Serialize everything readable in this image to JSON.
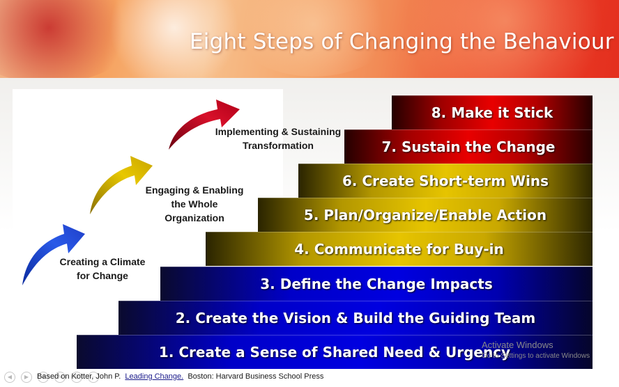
{
  "slide": {
    "title": "Eight Steps of Changing the Behaviour",
    "stages": [
      {
        "line1": "Creating a Climate",
        "line2": "for Change",
        "line3": ""
      },
      {
        "line1": "Engaging & Enabling",
        "line2": "the Whole",
        "line3": "Organization"
      },
      {
        "line1": "Implementing & Sustaining",
        "line2": "Transformation",
        "line3": ""
      }
    ],
    "steps": [
      {
        "label": "1. Create a Sense of Shared Need & Urgency",
        "color": "blue"
      },
      {
        "label": "2. Create the Vision & Build the Guiding Team",
        "color": "blue"
      },
      {
        "label": "3. Define the Change Impacts",
        "color": "blue"
      },
      {
        "label": "4. Communicate for Buy-in",
        "color": "gold"
      },
      {
        "label": "5. Plan/Organize/Enable Action",
        "color": "gold"
      },
      {
        "label": "6. Create Short-term Wins",
        "color": "gold"
      },
      {
        "label": "7. Sustain the Change",
        "color": "red"
      },
      {
        "label": "8. Make it Stick",
        "color": "red"
      }
    ],
    "arrow_colors": [
      "#1f4fd6",
      "#d4b000",
      "#c8102e"
    ],
    "citation": {
      "prefix": "Based on Kotter, John P.",
      "link": "Leading Change.",
      "suffix": "Boston:  Harvard Business School Press"
    }
  },
  "watermark": {
    "title": "Activate Windows",
    "subtitle": "Go to Settings to activate Windows"
  },
  "navigation": {
    "icons": [
      "previous-icon",
      "next-icon",
      "menu-icon",
      "pen-icon",
      "zoom-icon",
      "more-icon"
    ]
  }
}
